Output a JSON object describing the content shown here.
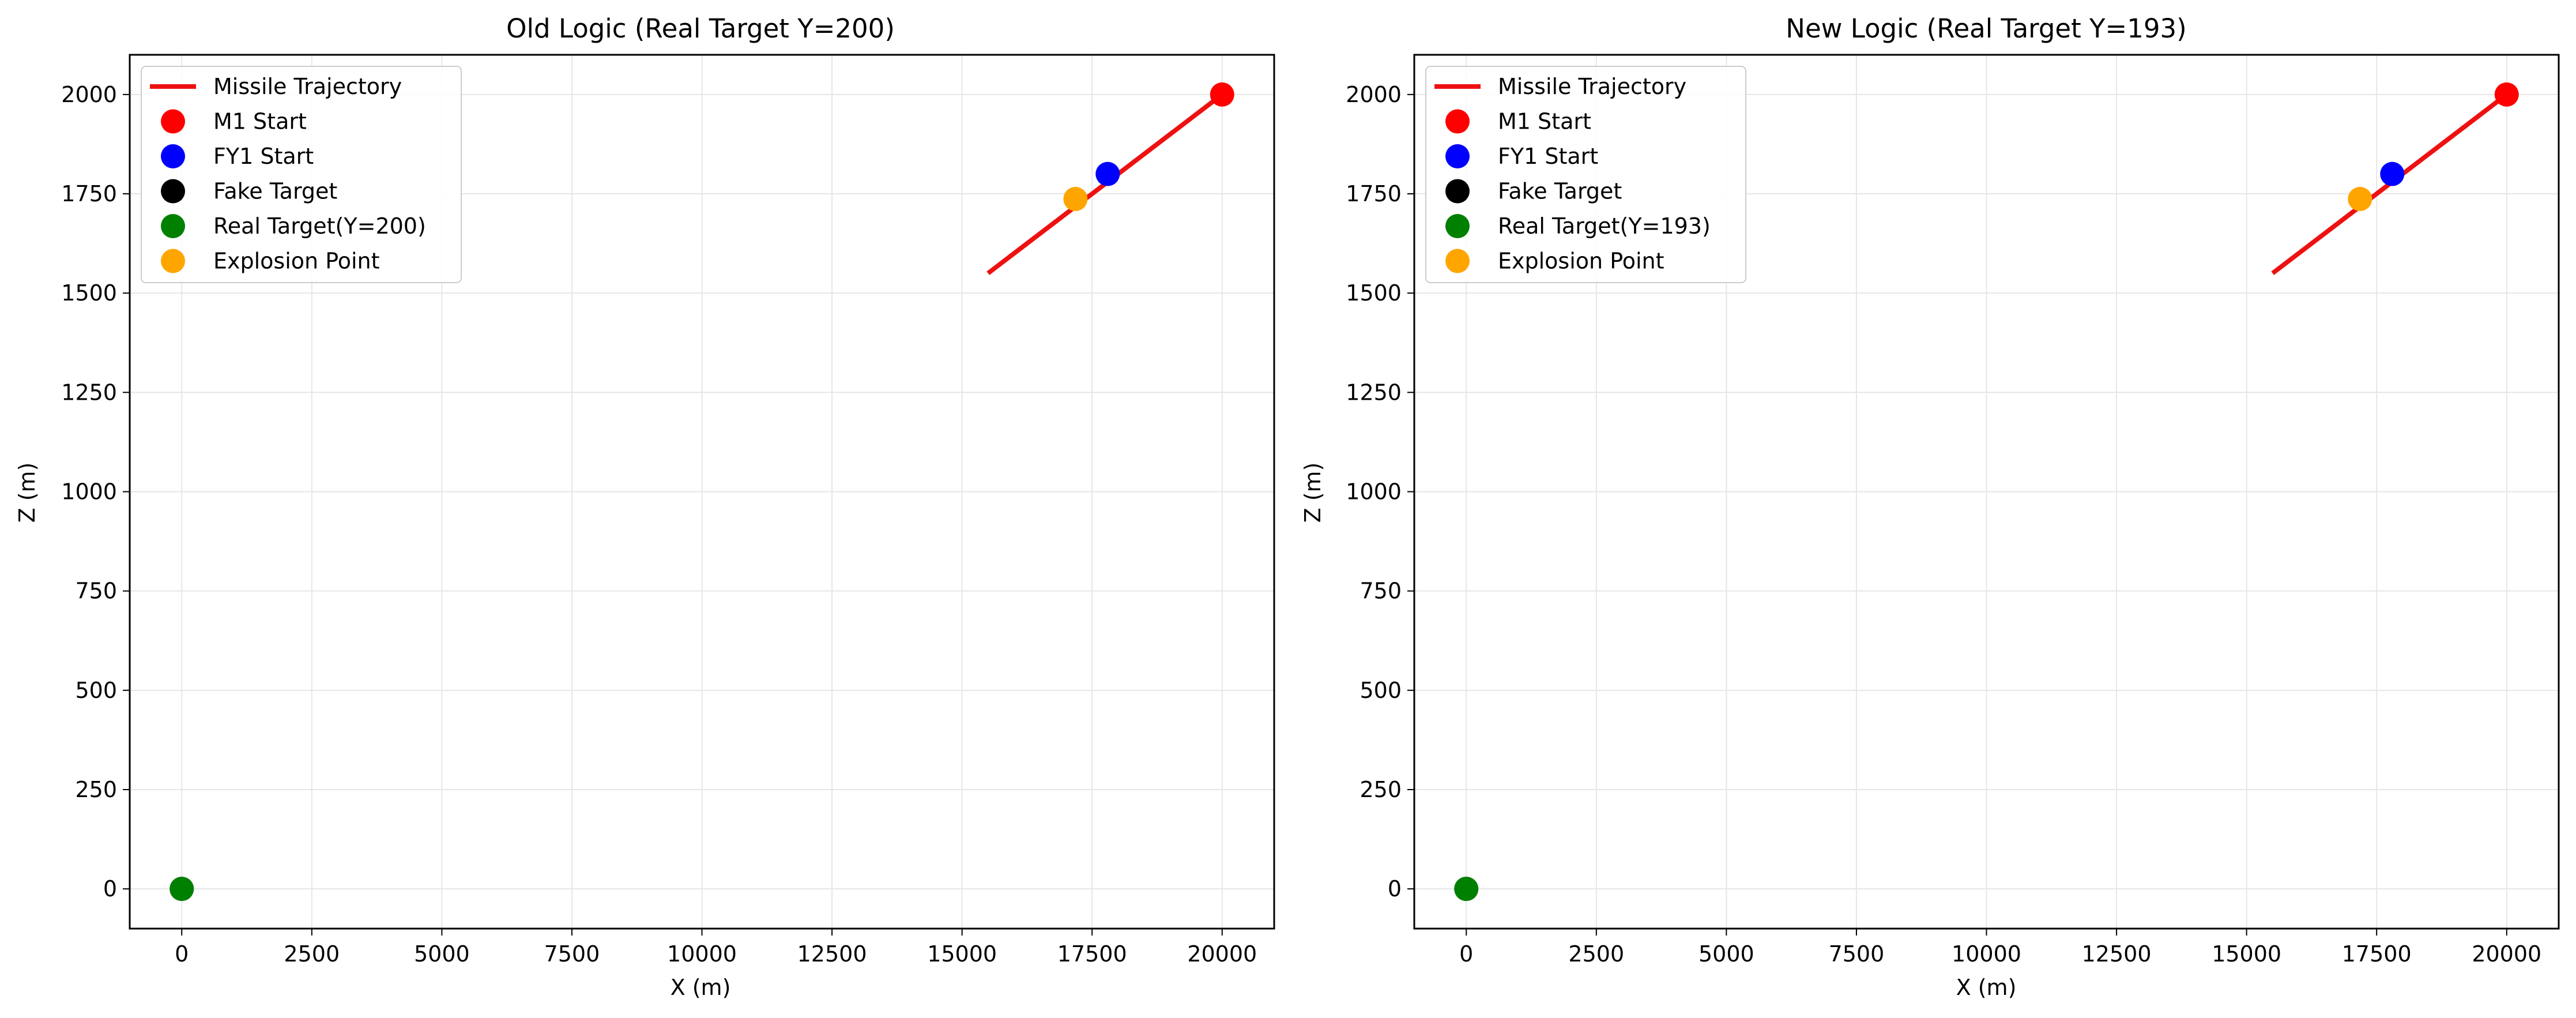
{
  "colors": {
    "trajectory": "#ee1111",
    "m1_start": "#ff0000",
    "fy1_start": "#0000ff",
    "fake_target": "#000000",
    "real_target": "#008000",
    "explosion": "#ffa500",
    "grid": "#e6e6e6"
  },
  "chart_data": [
    {
      "type": "scatter",
      "title": "Old Logic (Real Target Y=200)",
      "xlabel": "X (m)",
      "ylabel": "Z (m)",
      "xlim": [
        -1000,
        21000
      ],
      "ylim": [
        -100,
        2100
      ],
      "xticks": [
        0,
        2500,
        5000,
        7500,
        10000,
        12500,
        15000,
        17500,
        20000
      ],
      "yticks": [
        0,
        250,
        500,
        750,
        1000,
        1250,
        1500,
        1750,
        2000
      ],
      "grid": true,
      "legend_position": "top-left",
      "legend": [
        "Missile Trajectory",
        "M1 Start",
        "FY1 Start",
        "Fake Target",
        "Real Target(Y=200)",
        "Explosion Point"
      ],
      "series": [
        {
          "name": "Missile Trajectory",
          "kind": "line",
          "color_key": "trajectory",
          "x": [
            20000,
            15500
          ],
          "y": [
            2000,
            1550
          ]
        },
        {
          "name": "M1 Start",
          "kind": "point",
          "color_key": "m1_start",
          "x": [
            20000
          ],
          "y": [
            2000
          ]
        },
        {
          "name": "FY1 Start",
          "kind": "point",
          "color_key": "fy1_start",
          "x": [
            17800
          ],
          "y": [
            1800
          ]
        },
        {
          "name": "Fake Target",
          "kind": "point",
          "color_key": "fake_target",
          "x": [
            0
          ],
          "y": [
            0
          ]
        },
        {
          "name": "Real Target(Y=200)",
          "kind": "point",
          "color_key": "real_target",
          "x": [
            0
          ],
          "y": [
            0
          ]
        },
        {
          "name": "Explosion Point",
          "kind": "point",
          "color_key": "explosion",
          "x": [
            17180
          ],
          "y": [
            1737
          ]
        }
      ]
    },
    {
      "type": "scatter",
      "title": "New Logic (Real Target Y=193)",
      "xlabel": "X (m)",
      "ylabel": "Z (m)",
      "xlim": [
        -1000,
        21000
      ],
      "ylim": [
        -100,
        2100
      ],
      "xticks": [
        0,
        2500,
        5000,
        7500,
        10000,
        12500,
        15000,
        17500,
        20000
      ],
      "yticks": [
        0,
        250,
        500,
        750,
        1000,
        1250,
        1500,
        1750,
        2000
      ],
      "grid": true,
      "legend_position": "top-left",
      "legend": [
        "Missile Trajectory",
        "M1 Start",
        "FY1 Start",
        "Fake Target",
        "Real Target(Y=193)",
        "Explosion Point"
      ],
      "series": [
        {
          "name": "Missile Trajectory",
          "kind": "line",
          "color_key": "trajectory",
          "x": [
            20000,
            15500
          ],
          "y": [
            2000,
            1550
          ]
        },
        {
          "name": "M1 Start",
          "kind": "point",
          "color_key": "m1_start",
          "x": [
            20000
          ],
          "y": [
            2000
          ]
        },
        {
          "name": "FY1 Start",
          "kind": "point",
          "color_key": "fy1_start",
          "x": [
            17800
          ],
          "y": [
            1800
          ]
        },
        {
          "name": "Fake Target",
          "kind": "point",
          "color_key": "fake_target",
          "x": [
            0
          ],
          "y": [
            0
          ]
        },
        {
          "name": "Real Target(Y=193)",
          "kind": "point",
          "color_key": "real_target",
          "x": [
            0
          ],
          "y": [
            0
          ]
        },
        {
          "name": "Explosion Point",
          "kind": "point",
          "color_key": "explosion",
          "x": [
            17180
          ],
          "y": [
            1737
          ]
        }
      ]
    }
  ]
}
